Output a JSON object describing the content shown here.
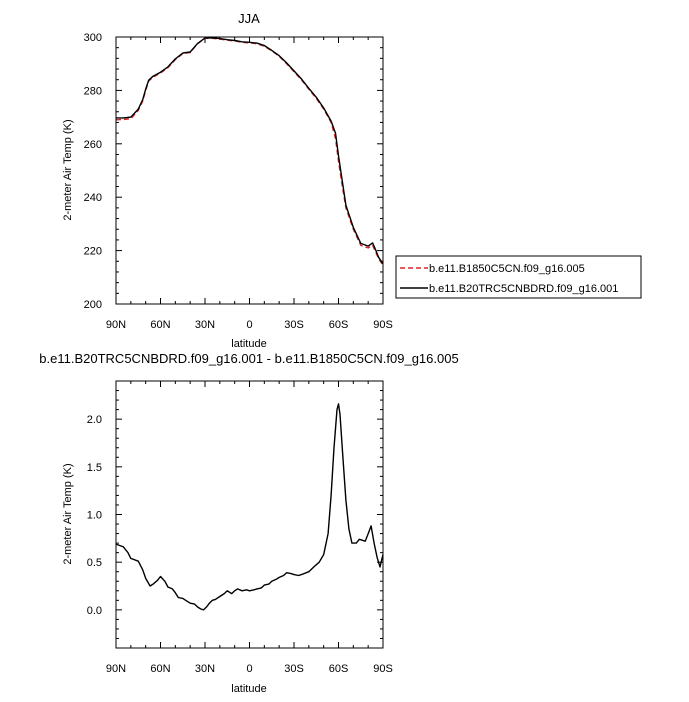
{
  "chart_data": [
    {
      "type": "line",
      "title": "JJA",
      "xlabel": "latitude",
      "ylabel": "2-meter Air Temp (K)",
      "xlim": [
        -90,
        90
      ],
      "ylim": [
        200,
        300
      ],
      "x_ticks": [
        -90,
        -60,
        -30,
        0,
        30,
        60,
        90
      ],
      "x_tick_labels": [
        "90N",
        "60N",
        "30N",
        "0",
        "30S",
        "60S",
        "90S"
      ],
      "y_ticks": [
        200,
        220,
        240,
        260,
        280,
        300
      ],
      "y_tick_labels": [
        "200",
        "220",
        "240",
        "260",
        "280",
        "300"
      ],
      "legend_position": "outside-right",
      "series": [
        {
          "name": "b.e11.B1850C5CN.f09_g16.005",
          "color": "#d62728",
          "dash": "dashed",
          "x": [
            -90,
            -85,
            -80,
            -75,
            -72,
            -70,
            -68,
            -65,
            -60,
            -55,
            -50,
            -45,
            -40,
            -35,
            -30,
            -25,
            -20,
            -15,
            -10,
            -5,
            0,
            5,
            10,
            15,
            20,
            25,
            30,
            35,
            40,
            45,
            50,
            55,
            58,
            60,
            62,
            65,
            70,
            75,
            80,
            83,
            85,
            87,
            90
          ],
          "y": [
            269,
            269.1,
            269.4,
            272.5,
            276,
            280,
            283.5,
            285,
            286.5,
            288.5,
            291.5,
            293.8,
            294.2,
            297.5,
            299.5,
            299.5,
            299.2,
            298.8,
            298.5,
            298,
            297.8,
            297.5,
            296.5,
            294.8,
            292.8,
            290,
            287,
            284,
            280.5,
            277,
            273,
            268,
            262,
            253.5,
            246,
            236,
            228,
            222,
            221,
            222,
            219.5,
            217,
            214.5
          ]
        },
        {
          "name": "b.e11.B20TRC5CNBDRD.f09_g16.001",
          "color": "#000000",
          "dash": "solid",
          "x": [
            -90,
            -85,
            -80,
            -75,
            -72,
            -70,
            -68,
            -65,
            -60,
            -55,
            -50,
            -45,
            -40,
            -35,
            -30,
            -25,
            -20,
            -15,
            -10,
            -5,
            0,
            5,
            10,
            15,
            20,
            25,
            30,
            35,
            40,
            45,
            50,
            55,
            58,
            60,
            62,
            65,
            70,
            75,
            80,
            83,
            85,
            87,
            90
          ],
          "y": [
            269.7,
            269.7,
            270,
            273,
            276.5,
            280.5,
            283.8,
            285.3,
            286.8,
            288.8,
            291.8,
            294,
            294.4,
            297.6,
            299.6,
            299.7,
            299.4,
            299,
            298.7,
            298.2,
            298,
            297.7,
            296.8,
            295,
            293,
            290.3,
            287.3,
            284.3,
            280.8,
            277.4,
            273.4,
            268.5,
            264,
            255.5,
            248,
            237,
            228.7,
            222.7,
            221.7,
            222.9,
            220.3,
            217.5,
            215
          ]
        }
      ]
    },
    {
      "type": "line",
      "title": "b.e11.B20TRC5CNBDRD.f09_g16.001 - b.e11.B1850C5CN.f09_g16.005",
      "xlabel": "latitude",
      "ylabel": "2-meter Air Temp (K)",
      "xlim": [
        -90,
        90
      ],
      "ylim": [
        -0.4,
        2.4
      ],
      "x_ticks": [
        -90,
        -60,
        -30,
        0,
        30,
        60,
        90
      ],
      "x_tick_labels": [
        "90N",
        "60N",
        "30N",
        "0",
        "30S",
        "60S",
        "90S"
      ],
      "y_ticks": [
        0,
        0.5,
        1,
        1.5,
        2
      ],
      "y_tick_labels": [
        "0.0",
        "0.5",
        "1.0",
        "1.5",
        "2.0"
      ],
      "series": [
        {
          "color": "#000000",
          "dash": "solid",
          "x": [
            -90,
            -85,
            -82,
            -80,
            -75,
            -72,
            -70,
            -67,
            -65,
            -62,
            -60,
            -57,
            -55,
            -52,
            -50,
            -48,
            -45,
            -42,
            -40,
            -37,
            -35,
            -33,
            -31,
            -29,
            -27,
            -25,
            -23,
            -20,
            -17,
            -15,
            -12,
            -10,
            -8,
            -5,
            -2,
            0,
            3,
            5,
            8,
            10,
            13,
            15,
            18,
            20,
            23,
            25,
            28,
            30,
            33,
            35,
            40,
            44,
            47,
            50,
            53,
            55,
            57,
            59,
            60,
            61,
            63,
            65,
            67,
            69,
            72,
            74,
            76,
            78,
            80,
            82,
            84,
            86,
            88,
            90
          ],
          "y": [
            0.69,
            0.66,
            0.6,
            0.54,
            0.51,
            0.42,
            0.33,
            0.25,
            0.27,
            0.31,
            0.35,
            0.3,
            0.24,
            0.22,
            0.18,
            0.13,
            0.12,
            0.09,
            0.07,
            0.06,
            0.03,
            0.01,
            0.0,
            0.03,
            0.07,
            0.1,
            0.11,
            0.14,
            0.17,
            0.2,
            0.17,
            0.2,
            0.22,
            0.2,
            0.21,
            0.2,
            0.21,
            0.22,
            0.23,
            0.26,
            0.27,
            0.3,
            0.32,
            0.34,
            0.36,
            0.39,
            0.38,
            0.37,
            0.36,
            0.37,
            0.4,
            0.46,
            0.5,
            0.58,
            0.8,
            1.2,
            1.7,
            2.1,
            2.16,
            2.05,
            1.6,
            1.15,
            0.85,
            0.7,
            0.7,
            0.74,
            0.73,
            0.72,
            0.8,
            0.88,
            0.7,
            0.55,
            0.45,
            0.58
          ]
        }
      ]
    }
  ]
}
